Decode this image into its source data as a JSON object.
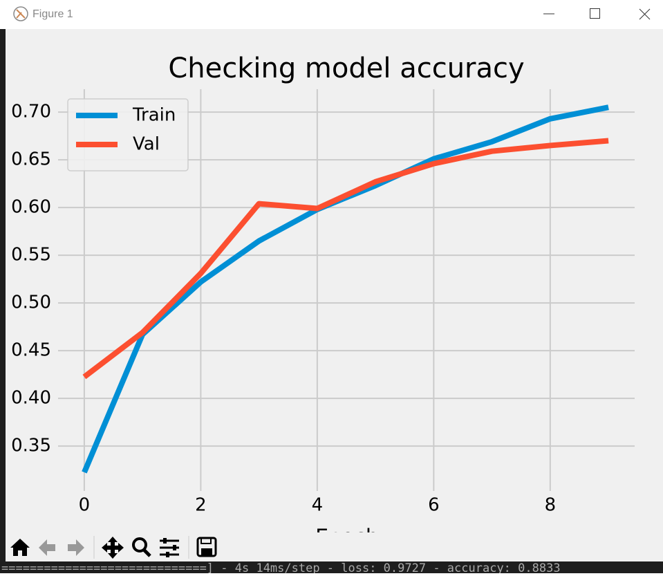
{
  "window": {
    "title": "Figure 1"
  },
  "terminal": {
    "text": "=============================] - 4s 14ms/step - loss: 0.9727 - accuracy: 0.8833"
  },
  "chart_data": {
    "type": "line",
    "title": "Checking model accuracy",
    "x_label": "Epoch",
    "x": [
      0,
      1,
      2,
      3,
      4,
      5,
      6,
      7,
      8,
      9
    ],
    "series": [
      {
        "name": "Train",
        "color": "#008fd5",
        "values": [
          0.3225,
          0.467,
          0.522,
          0.565,
          0.598,
          0.623,
          0.651,
          0.669,
          0.693,
          0.705
        ]
      },
      {
        "name": "Val",
        "color": "#fc4f30",
        "values": [
          0.4225,
          0.469,
          0.531,
          0.604,
          0.599,
          0.627,
          0.646,
          0.659,
          0.665,
          0.67
        ]
      }
    ],
    "xlim": [
      -0.45,
      9.45
    ],
    "xticks": [
      0,
      2,
      4,
      6,
      8
    ],
    "ylim": [
      0.303,
      0.724
    ],
    "yticks": [
      0.35,
      {
        "value": 0.4,
        "label": "0.40"
      },
      0.45,
      {
        "value": 0.5,
        "label": "0.50"
      },
      0.55,
      {
        "value": 0.6,
        "label": "0.60"
      },
      0.65,
      {
        "value": 0.7,
        "label": "0.70"
      }
    ],
    "grid": true,
    "legend": "upper-left"
  }
}
